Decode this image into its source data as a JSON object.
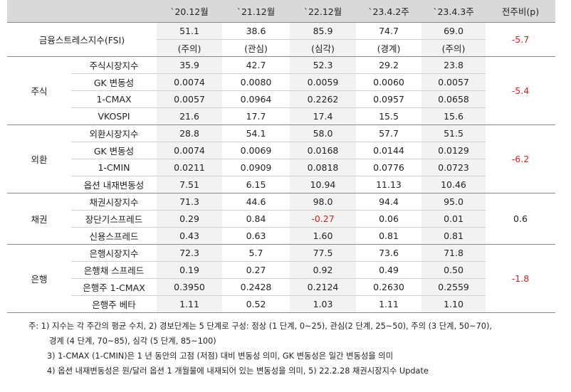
{
  "header": {
    "columns": [
      "`20.12월",
      "`21.12월",
      "`22.12월",
      "`23.4.2주",
      "`23.4.3주"
    ],
    "change": "전주비(p)"
  },
  "fsi": {
    "label": "금융스트레스지수(FSI)",
    "values": [
      "51.1",
      "38.6",
      "85.9",
      "74.7",
      "69.0"
    ],
    "levels": [
      "(주의)",
      "(관심)",
      "(심각)",
      "(경계)",
      "(주의)"
    ],
    "change": "-5.7"
  },
  "groups": [
    {
      "name": "주식",
      "change": "-5.4",
      "rows": [
        {
          "label": "주식시장지수",
          "values": [
            "35.9",
            "42.7",
            "52.3",
            "29.2",
            "23.8"
          ]
        },
        {
          "label": "GK 변동성",
          "values": [
            "0.0074",
            "0.0080",
            "0.0059",
            "0.0060",
            "0.0057"
          ]
        },
        {
          "label": "1-CMAX",
          "values": [
            "0.0057",
            "0.0964",
            "0.2262",
            "0.0957",
            "0.0658"
          ]
        },
        {
          "label": "VKOSPI",
          "values": [
            "21.6",
            "17.7",
            "17.4",
            "15.5",
            "15.6"
          ]
        }
      ]
    },
    {
      "name": "외환",
      "change": "-6.2",
      "rows": [
        {
          "label": "외환시장지수",
          "values": [
            "28.8",
            "54.1",
            "58.0",
            "57.7",
            "51.5"
          ]
        },
        {
          "label": "GK 변동성",
          "values": [
            "0.0074",
            "0.0069",
            "0.0168",
            "0.0144",
            "0.0129"
          ]
        },
        {
          "label": "1-CMIN",
          "values": [
            "0.0211",
            "0.0909",
            "0.0818",
            "0.0776",
            "0.0723"
          ]
        },
        {
          "label": "옵션 내재변동성",
          "values": [
            "7.51",
            "6.15",
            "10.94",
            "11.13",
            "10.46"
          ]
        }
      ]
    },
    {
      "name": "채권",
      "change": "0.6",
      "rows": [
        {
          "label": "채권시장지수",
          "values": [
            "71.3",
            "44.6",
            "98.0",
            "94.4",
            "95.0"
          ]
        },
        {
          "label": "장단기스프레드",
          "values": [
            "0.29",
            "0.84",
            "-0.27",
            "0.06",
            "0.01"
          ]
        },
        {
          "label": "신용스프레드",
          "values": [
            "0.43",
            "0.63",
            "1.60",
            "0.81",
            "0.81"
          ]
        }
      ]
    },
    {
      "name": "은행",
      "change": "-1.8",
      "rows": [
        {
          "label": "은행시장지수",
          "values": [
            "72.3",
            "5.7",
            "77.5",
            "73.6",
            "71.8"
          ]
        },
        {
          "label": "은행채 스프레드",
          "values": [
            "0.19",
            "0.27",
            "0.92",
            "0.49",
            "0.50"
          ]
        },
        {
          "label": "은행주 1-CMAX",
          "values": [
            "0.3950",
            "0.2428",
            "0.2124",
            "0.2630",
            "0.2559"
          ]
        },
        {
          "label": "은행주 베타",
          "values": [
            "1.11",
            "0.52",
            "1.03",
            "1.11",
            "1.10"
          ]
        }
      ]
    }
  ],
  "notes": [
    "주: 1) 지수는 각 주간의 평균 수치, 2) 경보단계는 5 단계로 구성: 정상 (1 단계, 0~25), 관심(2 단계, 25~50), 주의 (3 단계, 50~70),",
    "경계 (4 단계, 70~85), 심각 (5 단계, 85~100)",
    "3) 1-CMAX (1-CMIN)은 1 년 동안의 고점 (저점) 대비 변동성 의미, GK 변동성은 일간 변동성을 의미",
    "4) 옵션 내재변동성은 원/달러 옵션 1 개월물에 내재되어 있는 변동성을 의미, 5) 22.2.28 채권시장지수 Update"
  ]
}
